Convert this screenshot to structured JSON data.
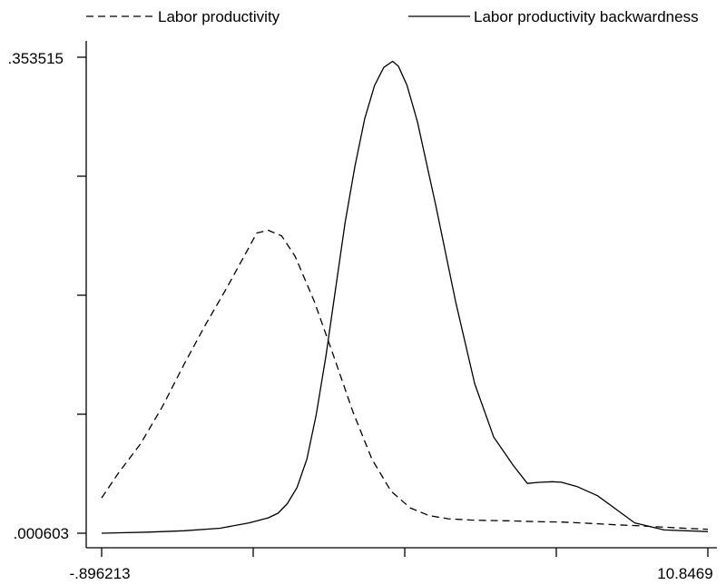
{
  "chart_data": {
    "type": "line",
    "title": "",
    "xlabel": "",
    "ylabel": "",
    "legend": "top",
    "grid": false,
    "xlim": [
      -0.896213,
      10.8469
    ],
    "ylim": [
      0.000603,
      0.353515
    ],
    "x_tick_labels": [
      "-.896213",
      "10.8469"
    ],
    "y_tick_labels": [
      ".353515",
      ".000603"
    ],
    "series": [
      {
        "name": "Labor productivity",
        "style": "dashed",
        "color": "#000000",
        "x": [
          -0.896,
          -0.56,
          -0.14,
          0.28,
          0.7,
          1.12,
          1.54,
          1.8,
          2.11,
          2.33,
          2.59,
          2.85,
          3.22,
          3.59,
          3.97,
          4.34,
          4.71,
          5.08,
          5.45,
          5.82,
          6.26,
          6.61,
          6.96,
          7.31,
          7.66,
          8.01,
          8.36,
          8.71,
          9.05,
          9.4,
          9.75,
          10.1,
          10.45,
          10.847
        ],
        "y": [
          0.0268,
          0.0458,
          0.067,
          0.0944,
          0.1258,
          0.1555,
          0.1833,
          0.2016,
          0.2232,
          0.2252,
          0.2211,
          0.206,
          0.1729,
          0.1329,
          0.0908,
          0.0554,
          0.0318,
          0.0194,
          0.0136,
          0.0113,
          0.0104,
          0.01,
          0.0098,
          0.0094,
          0.0091,
          0.0089,
          0.0083,
          0.0076,
          0.0069,
          0.0063,
          0.0056,
          0.0049,
          0.0042,
          0.0036
        ]
      },
      {
        "name": "Labor productivity backwardness",
        "style": "solid",
        "color": "#000000",
        "x": [
          -0.896,
          0.0,
          0.7,
          1.4,
          1.96,
          2.33,
          2.52,
          2.7,
          2.89,
          3.08,
          3.26,
          3.45,
          3.64,
          3.82,
          4.01,
          4.2,
          4.39,
          4.57,
          4.74,
          4.85,
          5.02,
          5.22,
          5.58,
          5.96,
          6.33,
          6.7,
          7.08,
          7.35,
          7.57,
          7.83,
          8.01,
          8.32,
          8.71,
          9.07,
          9.43,
          10.0,
          10.847
        ],
        "y": [
          0.0006,
          0.0014,
          0.0024,
          0.0043,
          0.0083,
          0.012,
          0.0154,
          0.0225,
          0.0346,
          0.0556,
          0.0883,
          0.1322,
          0.1828,
          0.231,
          0.2726,
          0.308,
          0.3325,
          0.346,
          0.3505,
          0.347,
          0.3327,
          0.3059,
          0.243,
          0.1725,
          0.1114,
          0.0718,
          0.0508,
          0.0375,
          0.0383,
          0.0388,
          0.0384,
          0.0351,
          0.0284,
          0.0184,
          0.0083,
          0.003,
          0.0018
        ]
      }
    ]
  }
}
